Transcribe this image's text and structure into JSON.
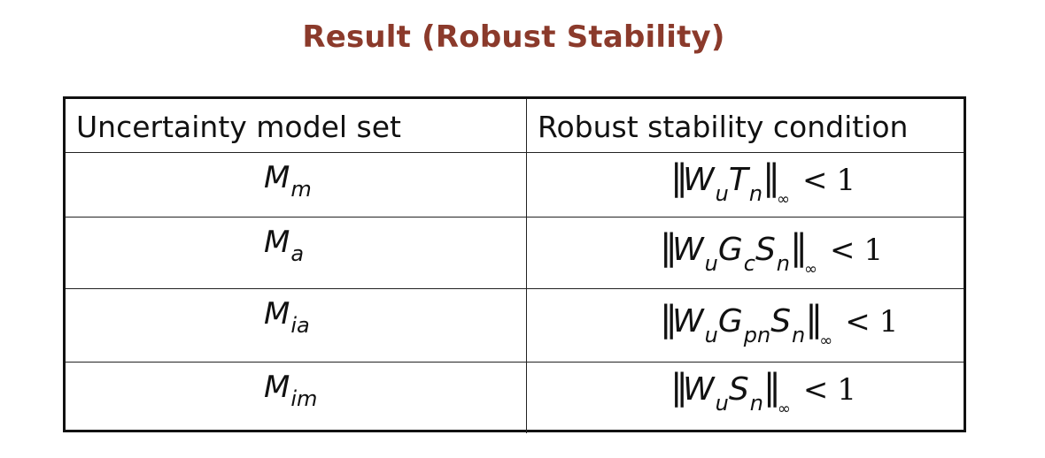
{
  "title": "Result (Robust Stability)",
  "table": {
    "headers": [
      "Uncertainty model set",
      "Robust stability condition"
    ],
    "rows": [
      {
        "model": {
          "base": "M",
          "sub": "m"
        },
        "condition": {
          "terms": [
            {
              "base": "W",
              "sub": "u"
            },
            {
              "base": "T",
              "sub": "n"
            }
          ],
          "norm": "∞",
          "op": "<",
          "rhs": "1"
        }
      },
      {
        "model": {
          "base": "M",
          "sub": "a"
        },
        "condition": {
          "terms": [
            {
              "base": "W",
              "sub": "u"
            },
            {
              "base": "G",
              "sub": "c"
            },
            {
              "base": "S",
              "sub": "n"
            }
          ],
          "norm": "∞",
          "op": "<",
          "rhs": "1"
        }
      },
      {
        "model": {
          "base": "M",
          "sub": "ia"
        },
        "condition": {
          "terms": [
            {
              "base": "W",
              "sub": "u"
            },
            {
              "base": "G",
              "sub": "pn"
            },
            {
              "base": "S",
              "sub": "n"
            }
          ],
          "norm": "∞",
          "op": "<",
          "rhs": "1"
        }
      },
      {
        "model": {
          "base": "M",
          "sub": "im"
        },
        "condition": {
          "terms": [
            {
              "base": "W",
              "sub": "u"
            },
            {
              "base": "S",
              "sub": "n"
            }
          ],
          "norm": "∞",
          "op": "<",
          "rhs": "1"
        }
      }
    ]
  }
}
